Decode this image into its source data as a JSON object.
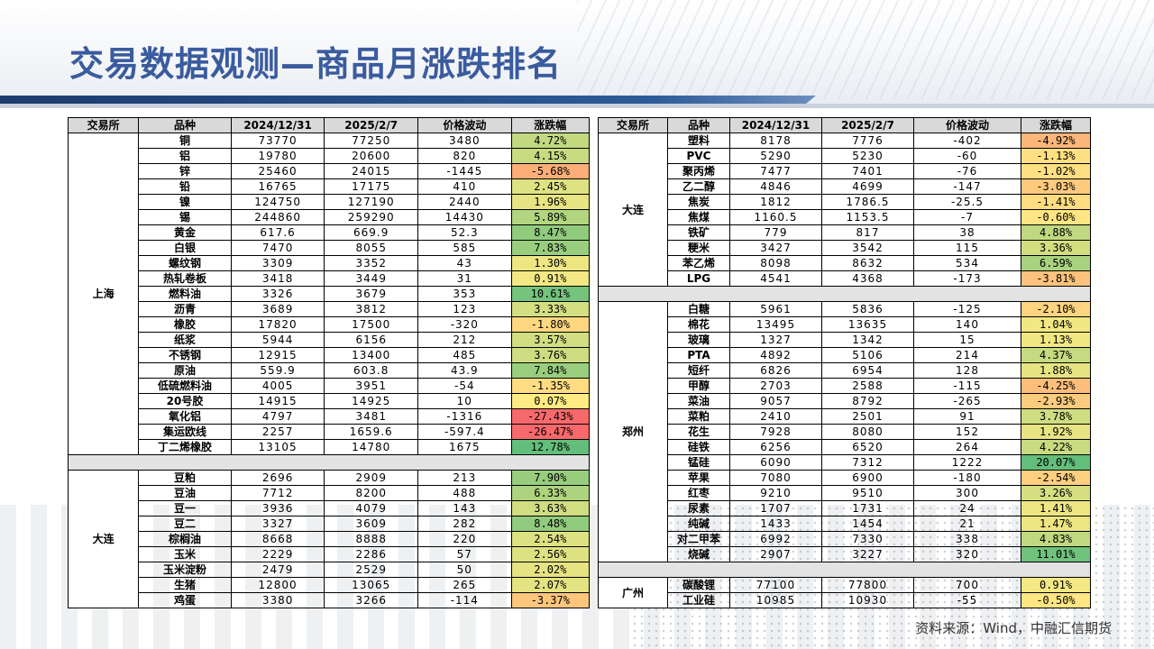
{
  "title": "交易数据观测—商品月涨跌排名",
  "source": "资料来源：Wind，中融汇信期货",
  "colors": {
    "title": "#3a5b9e",
    "rule": "#1d3c6e"
  },
  "columns": [
    "交易所",
    "品种",
    "2024/12/31",
    "2025/2/7",
    "价格波动",
    "涨跌幅"
  ],
  "left": [
    {
      "exchange": "上海",
      "rows": [
        {
          "name": "铜",
          "v1": "73770",
          "v2": "77250",
          "chg": "3480",
          "pct": "4.72%",
          "p": 4.72
        },
        {
          "name": "铝",
          "v1": "19780",
          "v2": "20600",
          "chg": "820",
          "pct": "4.15%",
          "p": 4.15
        },
        {
          "name": "锌",
          "v1": "25460",
          "v2": "24015",
          "chg": "-1445",
          "pct": "-5.68%",
          "p": -5.68
        },
        {
          "name": "铅",
          "v1": "16765",
          "v2": "17175",
          "chg": "410",
          "pct": "2.45%",
          "p": 2.45
        },
        {
          "name": "镍",
          "v1": "124750",
          "v2": "127190",
          "chg": "2440",
          "pct": "1.96%",
          "p": 1.96
        },
        {
          "name": "锡",
          "v1": "244860",
          "v2": "259290",
          "chg": "14430",
          "pct": "5.89%",
          "p": 5.89
        },
        {
          "name": "黄金",
          "v1": "617.6",
          "v2": "669.9",
          "chg": "52.3",
          "pct": "8.47%",
          "p": 8.47
        },
        {
          "name": "白银",
          "v1": "7470",
          "v2": "8055",
          "chg": "585",
          "pct": "7.83%",
          "p": 7.83
        },
        {
          "name": "螺纹钢",
          "v1": "3309",
          "v2": "3352",
          "chg": "43",
          "pct": "1.30%",
          "p": 1.3
        },
        {
          "name": "热轧卷板",
          "v1": "3418",
          "v2": "3449",
          "chg": "31",
          "pct": "0.91%",
          "p": 0.91
        },
        {
          "name": "燃料油",
          "v1": "3326",
          "v2": "3679",
          "chg": "353",
          "pct": "10.61%",
          "p": 10.61
        },
        {
          "name": "沥青",
          "v1": "3689",
          "v2": "3812",
          "chg": "123",
          "pct": "3.33%",
          "p": 3.33
        },
        {
          "name": "橡胶",
          "v1": "17820",
          "v2": "17500",
          "chg": "-320",
          "pct": "-1.80%",
          "p": -1.8
        },
        {
          "name": "纸浆",
          "v1": "5944",
          "v2": "6156",
          "chg": "212",
          "pct": "3.57%",
          "p": 3.57
        },
        {
          "name": "不锈钢",
          "v1": "12915",
          "v2": "13400",
          "chg": "485",
          "pct": "3.76%",
          "p": 3.76
        },
        {
          "name": "原油",
          "v1": "559.9",
          "v2": "603.8",
          "chg": "43.9",
          "pct": "7.84%",
          "p": 7.84
        },
        {
          "name": "低硫燃料油",
          "v1": "4005",
          "v2": "3951",
          "chg": "-54",
          "pct": "-1.35%",
          "p": -1.35
        },
        {
          "name": "20号胶",
          "v1": "14915",
          "v2": "14925",
          "chg": "10",
          "pct": "0.07%",
          "p": 0.07
        },
        {
          "name": "氧化铝",
          "v1": "4797",
          "v2": "3481",
          "chg": "-1316",
          "pct": "-27.43%",
          "p": -27.43
        },
        {
          "name": "集运欧线",
          "v1": "2257",
          "v2": "1659.6",
          "chg": "-597.4",
          "pct": "-26.47%",
          "p": -26.47
        },
        {
          "name": "丁二烯橡胶",
          "v1": "13105",
          "v2": "14780",
          "chg": "1675",
          "pct": "12.78%",
          "p": 12.78
        }
      ]
    },
    {
      "exchange": "大连",
      "rows": [
        {
          "name": "豆粕",
          "v1": "2696",
          "v2": "2909",
          "chg": "213",
          "pct": "7.90%",
          "p": 7.9
        },
        {
          "name": "豆油",
          "v1": "7712",
          "v2": "8200",
          "chg": "488",
          "pct": "6.33%",
          "p": 6.33
        },
        {
          "name": "豆一",
          "v1": "3936",
          "v2": "4079",
          "chg": "143",
          "pct": "3.63%",
          "p": 3.63
        },
        {
          "name": "豆二",
          "v1": "3327",
          "v2": "3609",
          "chg": "282",
          "pct": "8.48%",
          "p": 8.48
        },
        {
          "name": "棕榈油",
          "v1": "8668",
          "v2": "8888",
          "chg": "220",
          "pct": "2.54%",
          "p": 2.54
        },
        {
          "name": "玉米",
          "v1": "2229",
          "v2": "2286",
          "chg": "57",
          "pct": "2.56%",
          "p": 2.56
        },
        {
          "name": "玉米淀粉",
          "v1": "2479",
          "v2": "2529",
          "chg": "50",
          "pct": "2.02%",
          "p": 2.02
        },
        {
          "name": "生猪",
          "v1": "12800",
          "v2": "13065",
          "chg": "265",
          "pct": "2.07%",
          "p": 2.07
        },
        {
          "name": "鸡蛋",
          "v1": "3380",
          "v2": "3266",
          "chg": "-114",
          "pct": "-3.37%",
          "p": -3.37
        }
      ]
    }
  ],
  "right": [
    {
      "exchange": "大连",
      "rows": [
        {
          "name": "塑料",
          "v1": "8178",
          "v2": "7776",
          "chg": "-402",
          "pct": "-4.92%",
          "p": -4.92
        },
        {
          "name": "PVC",
          "v1": "5290",
          "v2": "5230",
          "chg": "-60",
          "pct": "-1.13%",
          "p": -1.13
        },
        {
          "name": "聚丙烯",
          "v1": "7477",
          "v2": "7401",
          "chg": "-76",
          "pct": "-1.02%",
          "p": -1.02
        },
        {
          "name": "乙二醇",
          "v1": "4846",
          "v2": "4699",
          "chg": "-147",
          "pct": "-3.03%",
          "p": -3.03
        },
        {
          "name": "焦炭",
          "v1": "1812",
          "v2": "1786.5",
          "chg": "-25.5",
          "pct": "-1.41%",
          "p": -1.41
        },
        {
          "name": "焦煤",
          "v1": "1160.5",
          "v2": "1153.5",
          "chg": "-7",
          "pct": "-0.60%",
          "p": -0.6
        },
        {
          "name": "铁矿",
          "v1": "779",
          "v2": "817",
          "chg": "38",
          "pct": "4.88%",
          "p": 4.88
        },
        {
          "name": "粳米",
          "v1": "3427",
          "v2": "3542",
          "chg": "115",
          "pct": "3.36%",
          "p": 3.36
        },
        {
          "name": "苯乙烯",
          "v1": "8098",
          "v2": "8632",
          "chg": "534",
          "pct": "6.59%",
          "p": 6.59
        },
        {
          "name": "LPG",
          "v1": "4541",
          "v2": "4368",
          "chg": "-173",
          "pct": "-3.81%",
          "p": -3.81
        }
      ]
    },
    {
      "exchange": "郑州",
      "rows": [
        {
          "name": "白糖",
          "v1": "5961",
          "v2": "5836",
          "chg": "-125",
          "pct": "-2.10%",
          "p": -2.1
        },
        {
          "name": "棉花",
          "v1": "13495",
          "v2": "13635",
          "chg": "140",
          "pct": "1.04%",
          "p": 1.04
        },
        {
          "name": "玻璃",
          "v1": "1327",
          "v2": "1342",
          "chg": "15",
          "pct": "1.13%",
          "p": 1.13
        },
        {
          "name": "PTA",
          "v1": "4892",
          "v2": "5106",
          "chg": "214",
          "pct": "4.37%",
          "p": 4.37
        },
        {
          "name": "短纤",
          "v1": "6826",
          "v2": "6954",
          "chg": "128",
          "pct": "1.88%",
          "p": 1.88
        },
        {
          "name": "甲醇",
          "v1": "2703",
          "v2": "2588",
          "chg": "-115",
          "pct": "-4.25%",
          "p": -4.25
        },
        {
          "name": "菜油",
          "v1": "9057",
          "v2": "8792",
          "chg": "-265",
          "pct": "-2.93%",
          "p": -2.93
        },
        {
          "name": "菜粕",
          "v1": "2410",
          "v2": "2501",
          "chg": "91",
          "pct": "3.78%",
          "p": 3.78
        },
        {
          "name": "花生",
          "v1": "7928",
          "v2": "8080",
          "chg": "152",
          "pct": "1.92%",
          "p": 1.92
        },
        {
          "name": "硅铁",
          "v1": "6256",
          "v2": "6520",
          "chg": "264",
          "pct": "4.22%",
          "p": 4.22
        },
        {
          "name": "锰硅",
          "v1": "6090",
          "v2": "7312",
          "chg": "1222",
          "pct": "20.07%",
          "p": 20.07
        },
        {
          "name": "苹果",
          "v1": "7080",
          "v2": "6900",
          "chg": "-180",
          "pct": "-2.54%",
          "p": -2.54
        },
        {
          "name": "红枣",
          "v1": "9210",
          "v2": "9510",
          "chg": "300",
          "pct": "3.26%",
          "p": 3.26
        },
        {
          "name": "尿素",
          "v1": "1707",
          "v2": "1731",
          "chg": "24",
          "pct": "1.41%",
          "p": 1.41
        },
        {
          "name": "纯碱",
          "v1": "1433",
          "v2": "1454",
          "chg": "21",
          "pct": "1.47%",
          "p": 1.47
        },
        {
          "name": "对二甲苯",
          "v1": "6992",
          "v2": "7330",
          "chg": "338",
          "pct": "4.83%",
          "p": 4.83
        },
        {
          "name": "烧碱",
          "v1": "2907",
          "v2": "3227",
          "chg": "320",
          "pct": "11.01%",
          "p": 11.01
        }
      ]
    },
    {
      "exchange": "广州",
      "rows": [
        {
          "name": "碳酸锂",
          "v1": "77100",
          "v2": "77800",
          "chg": "700",
          "pct": "0.91%",
          "p": 0.91
        },
        {
          "name": "工业硅",
          "v1": "10985",
          "v2": "10930",
          "chg": "-55",
          "pct": "-0.50%",
          "p": -0.5
        }
      ]
    }
  ]
}
